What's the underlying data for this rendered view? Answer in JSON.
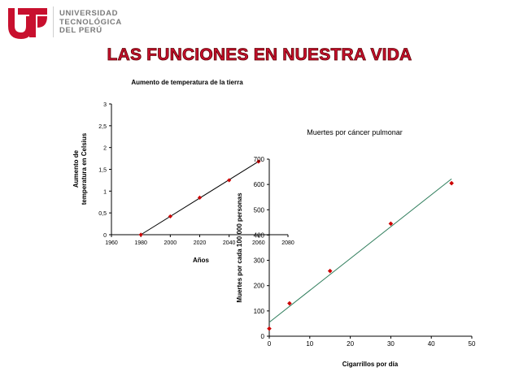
{
  "header": {
    "logo_lines": [
      "UNIVERSIDAD",
      "TECNOLÓGICA",
      "DEL PERÚ"
    ],
    "title": "LAS FUNCIONES EN NUESTRA VIDA"
  },
  "colors": {
    "accent": "#c8102e",
    "marker": "#cc0000",
    "line_1": "#000000",
    "line_2": "#2e7d5b"
  },
  "chart_data": [
    {
      "type": "scatter",
      "title": "Aumento de temperatura de la tierra",
      "xlabel": "Años",
      "ylabel": "Aumento de temperatura en Celsius",
      "xlim": [
        1960,
        2080
      ],
      "ylim": [
        0,
        3
      ],
      "x_ticks": [
        "1960",
        "1980",
        "2000",
        "2020",
        "2040",
        "2060",
        "2080"
      ],
      "y_ticks": [
        "0",
        "0,5",
        "1",
        "1,5",
        "2",
        "2,5",
        "3"
      ],
      "points": [
        {
          "x": 1980,
          "y": 0
        },
        {
          "x": 2000,
          "y": 0.42
        },
        {
          "x": 2020,
          "y": 0.85
        },
        {
          "x": 2040,
          "y": 1.25
        },
        {
          "x": 2060,
          "y": 1.68
        }
      ],
      "trendline": [
        [
          1980,
          0
        ],
        [
          2060,
          1.68
        ]
      ],
      "grid": false
    },
    {
      "type": "scatter",
      "title": "Muertes por cáncer pulmonar",
      "xlabel": "Cigarrillos por día",
      "ylabel": "Muertes por cada 100 000 personas",
      "xlim": [
        0,
        50
      ],
      "ylim": [
        0,
        700
      ],
      "x_ticks": [
        "0",
        "10",
        "20",
        "30",
        "40",
        "50"
      ],
      "y_ticks": [
        "0",
        "100",
        "200",
        "300",
        "400",
        "500",
        "600",
        "700"
      ],
      "points": [
        {
          "x": 0,
          "y": 30
        },
        {
          "x": 5,
          "y": 130
        },
        {
          "x": 15,
          "y": 258
        },
        {
          "x": 30,
          "y": 445
        },
        {
          "x": 45,
          "y": 605
        }
      ],
      "trendline": [
        [
          0,
          55
        ],
        [
          45,
          622
        ]
      ],
      "grid": false
    }
  ]
}
